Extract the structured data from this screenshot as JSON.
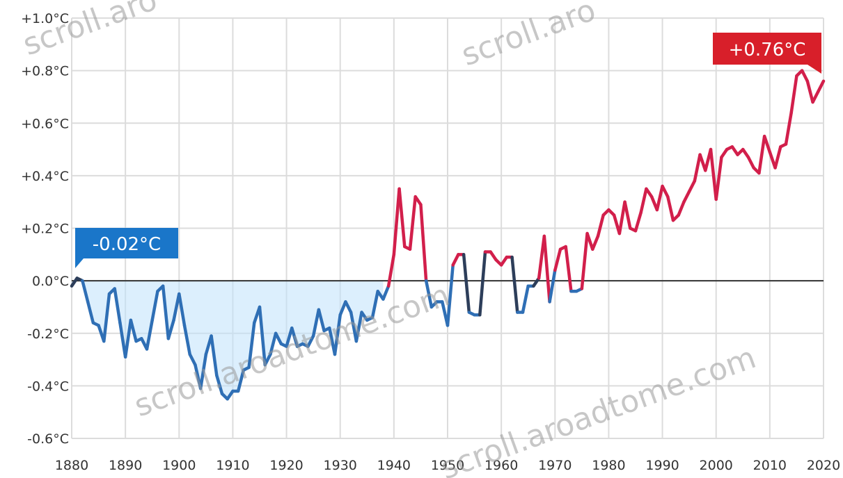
{
  "colors": {
    "warm": "#d21f4b",
    "cool": "#2f6fb5",
    "zero_line": "#333333",
    "grid": "#dcdcdc",
    "callout_cool": "#1a76c9",
    "callout_warm": "#d81f2a"
  },
  "watermark": "scroll.aroadtome.com",
  "chart_data": {
    "type": "line",
    "xlim": [
      1880,
      2020
    ],
    "ylim": [
      -0.6,
      1.0
    ],
    "grid": true,
    "x_ticks": [
      1880,
      1890,
      1900,
      1910,
      1920,
      1930,
      1940,
      1950,
      1960,
      1970,
      1980,
      1990,
      2000,
      2010,
      2020
    ],
    "y_ticks": [
      {
        "value": -0.6,
        "label": "-0.6°C"
      },
      {
        "value": -0.4,
        "label": "-0.4°C"
      },
      {
        "value": -0.2,
        "label": "-0.2°C"
      },
      {
        "value": 0.0,
        "label": "0.0°C"
      },
      {
        "value": 0.2,
        "label": "+0.2°C"
      },
      {
        "value": 0.4,
        "label": "+0.4°C"
      },
      {
        "value": 0.6,
        "label": "+0.6°C"
      },
      {
        "value": 0.8,
        "label": "+0.8°C"
      },
      {
        "value": 1.0,
        "label": "+1.0°C"
      }
    ],
    "annotations": [
      {
        "text": "-0.02°C",
        "x": 1880,
        "y": -0.02
      },
      {
        "text": "+0.76°C",
        "x": 2020,
        "y": 0.76
      }
    ],
    "series": [
      {
        "x": [
          1880,
          1881,
          1882,
          1883,
          1884,
          1885,
          1886,
          1887,
          1888,
          1889,
          1890,
          1891,
          1892,
          1893,
          1894,
          1895,
          1896,
          1897,
          1898,
          1899,
          1900,
          1901,
          1902,
          1903,
          1904,
          1905,
          1906,
          1907,
          1908,
          1909,
          1910,
          1911,
          1912,
          1913,
          1914,
          1915,
          1916,
          1917,
          1918,
          1919,
          1920,
          1921,
          1922,
          1923,
          1924,
          1925,
          1926,
          1927,
          1928,
          1929,
          1930,
          1931,
          1932,
          1933,
          1934,
          1935,
          1936,
          1937,
          1938,
          1939,
          1940,
          1941,
          1942,
          1943,
          1944,
          1945,
          1946,
          1947,
          1948,
          1949,
          1950,
          1951,
          1952,
          1953,
          1954,
          1955,
          1956,
          1957,
          1958,
          1959,
          1960,
          1961,
          1962,
          1963,
          1964,
          1965,
          1966,
          1967,
          1968,
          1969,
          1970,
          1971,
          1972,
          1973,
          1974,
          1975,
          1976,
          1977,
          1978,
          1979,
          1980,
          1981,
          1982,
          1983,
          1984,
          1985,
          1986,
          1987,
          1988,
          1989,
          1990,
          1991,
          1992,
          1993,
          1994,
          1995,
          1996,
          1997,
          1998,
          1999,
          2000,
          2001,
          2002,
          2003,
          2004,
          2005,
          2006,
          2007,
          2008,
          2009,
          2010,
          2011,
          2012,
          2013,
          2014,
          2015,
          2016,
          2017,
          2018,
          2019,
          2020
        ],
        "y": [
          -0.02,
          0.01,
          0.0,
          -0.08,
          -0.16,
          -0.17,
          -0.23,
          -0.05,
          -0.03,
          -0.16,
          -0.29,
          -0.15,
          -0.23,
          -0.22,
          -0.26,
          -0.15,
          -0.04,
          -0.02,
          -0.22,
          -0.15,
          -0.05,
          -0.17,
          -0.28,
          -0.32,
          -0.41,
          -0.28,
          -0.21,
          -0.36,
          -0.43,
          -0.45,
          -0.42,
          -0.42,
          -0.34,
          -0.33,
          -0.16,
          -0.1,
          -0.32,
          -0.28,
          -0.2,
          -0.24,
          -0.25,
          -0.18,
          -0.25,
          -0.24,
          -0.25,
          -0.21,
          -0.11,
          -0.19,
          -0.18,
          -0.28,
          -0.13,
          -0.08,
          -0.12,
          -0.23,
          -0.12,
          -0.15,
          -0.14,
          -0.04,
          -0.07,
          -0.02,
          0.1,
          0.35,
          0.13,
          0.12,
          0.32,
          0.29,
          0.0,
          -0.1,
          -0.08,
          -0.08,
          -0.17,
          0.06,
          0.1,
          0.1,
          -0.12,
          -0.13,
          -0.13,
          0.11,
          0.11,
          0.08,
          0.06,
          0.09,
          0.09,
          -0.12,
          -0.12,
          -0.02,
          -0.02,
          0.01,
          0.17,
          -0.08,
          0.04,
          0.12,
          0.13,
          -0.04,
          -0.04,
          -0.03,
          0.18,
          0.12,
          0.17,
          0.25,
          0.27,
          0.25,
          0.18,
          0.3,
          0.2,
          0.19,
          0.26,
          0.35,
          0.32,
          0.27,
          0.36,
          0.32,
          0.23,
          0.25,
          0.3,
          0.34,
          0.38,
          0.48,
          0.42,
          0.5,
          0.31,
          0.47,
          0.5,
          0.51,
          0.48,
          0.5,
          0.47,
          0.43,
          0.41,
          0.55,
          0.49,
          0.43,
          0.51,
          0.52,
          0.64,
          0.78,
          0.8,
          0.76,
          0.68,
          0.72,
          0.76
        ]
      }
    ]
  }
}
